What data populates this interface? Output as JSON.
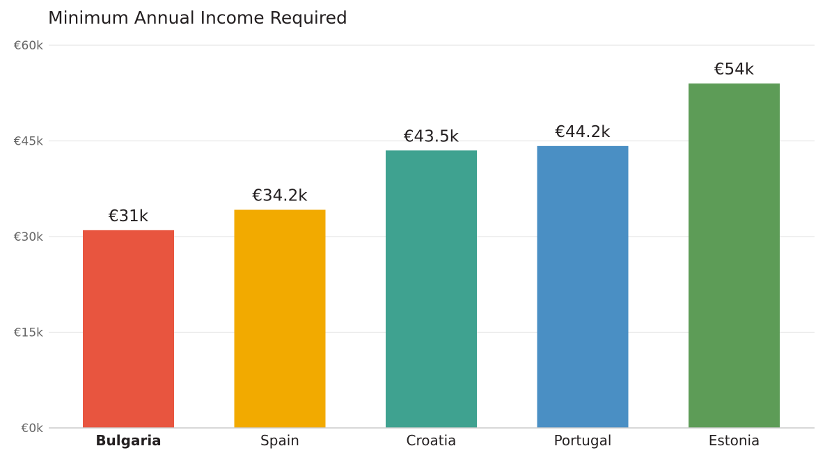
{
  "chart_data": {
    "type": "bar",
    "title": "Minimum Annual Income Required",
    "xlabel": "",
    "ylabel": "",
    "categories": [
      "Bulgaria",
      "Spain",
      "Croatia",
      "Portugal",
      "Estonia"
    ],
    "highlighted_category": "Bulgaria",
    "values": [
      31000,
      34200,
      43500,
      44200,
      54000
    ],
    "value_labels": [
      "€31k",
      "€34.2k",
      "€43.5k",
      "€44.2k",
      "€54k"
    ],
    "colors": [
      "#e8553f",
      "#f2aa00",
      "#3fa290",
      "#4a8fc4",
      "#5d9c57"
    ],
    "ylim": [
      0,
      60000
    ],
    "yticks": [
      0,
      15000,
      30000,
      45000,
      60000
    ],
    "ytick_labels": [
      "€0k",
      "€15k",
      "€30k",
      "€45k",
      "€60k"
    ],
    "grid": "horizontal",
    "legend": "none"
  }
}
